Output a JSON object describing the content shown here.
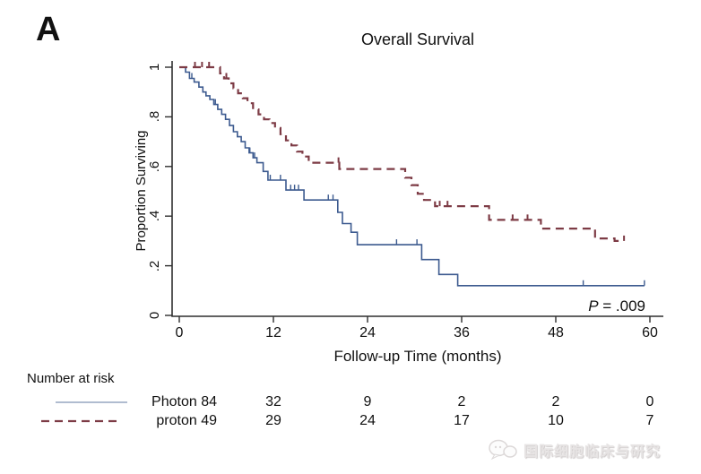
{
  "panel_label": "A",
  "watermark": {
    "logo": "speech-bubble-logo",
    "text": "国际细胞临床与研究"
  },
  "chart_data": {
    "type": "line",
    "subtype": "kaplan-meier-step",
    "title": "Overall Survival",
    "xlabel": "Follow-up Time (months)",
    "ylabel": "Proportion Surviving",
    "xlim": [
      0,
      60
    ],
    "ylim": [
      0,
      1
    ],
    "xticks": [
      0,
      12,
      24,
      36,
      48,
      60
    ],
    "yticks": [
      0,
      0.2,
      0.4,
      0.6,
      0.8,
      1
    ],
    "ytick_labels": [
      "0",
      ".2",
      ".4",
      ".6",
      ".8",
      "1"
    ],
    "grid": false,
    "annotation": {
      "p_label": "P",
      "p_value": " = .009"
    },
    "axis_color": "#2e2e2e",
    "series": [
      {
        "name": "Photon",
        "style": "solid",
        "color": "#3c5a8f",
        "legend_color": "#96a6c0",
        "steps": [
          [
            0,
            1.0
          ],
          [
            0.8,
            0.98
          ],
          [
            1.3,
            0.955
          ],
          [
            1.9,
            0.94
          ],
          [
            2.5,
            0.92
          ],
          [
            3.0,
            0.9
          ],
          [
            3.4,
            0.885
          ],
          [
            3.9,
            0.87
          ],
          [
            4.4,
            0.85
          ],
          [
            4.9,
            0.83
          ],
          [
            5.4,
            0.81
          ],
          [
            5.9,
            0.79
          ],
          [
            6.4,
            0.765
          ],
          [
            6.9,
            0.74
          ],
          [
            7.4,
            0.72
          ],
          [
            7.9,
            0.7
          ],
          [
            8.4,
            0.675
          ],
          [
            8.9,
            0.655
          ],
          [
            9.4,
            0.635
          ],
          [
            9.9,
            0.615
          ],
          [
            10.7,
            0.58
          ],
          [
            11.3,
            0.545
          ],
          [
            13.6,
            0.505
          ],
          [
            15.9,
            0.465
          ],
          [
            20.2,
            0.415
          ],
          [
            20.8,
            0.37
          ],
          [
            21.9,
            0.335
          ],
          [
            22.7,
            0.285
          ],
          [
            30.9,
            0.225
          ],
          [
            33.1,
            0.165
          ],
          [
            35.5,
            0.12
          ],
          [
            59.3,
            0.12
          ]
        ],
        "censors": [
          [
            1.6,
            0.955
          ],
          [
            4.6,
            0.85
          ],
          [
            9.0,
            0.655
          ],
          [
            9.6,
            0.635
          ],
          [
            11.6,
            0.545
          ],
          [
            12.9,
            0.545
          ],
          [
            14.2,
            0.505
          ],
          [
            14.7,
            0.505
          ],
          [
            15.2,
            0.505
          ],
          [
            19.0,
            0.465
          ],
          [
            19.6,
            0.465
          ],
          [
            27.7,
            0.285
          ],
          [
            30.3,
            0.285
          ],
          [
            51.5,
            0.12
          ],
          [
            59.3,
            0.12
          ]
        ]
      },
      {
        "name": "proton",
        "style": "dashed",
        "color": "#7d3b45",
        "legend_color": "#7d3b45",
        "steps": [
          [
            0,
            1.0
          ],
          [
            5.2,
            0.975
          ],
          [
            5.7,
            0.955
          ],
          [
            6.3,
            0.935
          ],
          [
            6.9,
            0.915
          ],
          [
            7.5,
            0.895
          ],
          [
            8.1,
            0.875
          ],
          [
            8.7,
            0.855
          ],
          [
            9.4,
            0.83
          ],
          [
            10.1,
            0.81
          ],
          [
            10.8,
            0.79
          ],
          [
            11.5,
            0.775
          ],
          [
            12.2,
            0.755
          ],
          [
            12.9,
            0.73
          ],
          [
            13.6,
            0.705
          ],
          [
            14.3,
            0.685
          ],
          [
            15.0,
            0.66
          ],
          [
            15.7,
            0.64
          ],
          [
            16.5,
            0.615
          ],
          [
            20.4,
            0.59
          ],
          [
            28.8,
            0.555
          ],
          [
            29.6,
            0.525
          ],
          [
            30.4,
            0.49
          ],
          [
            31.2,
            0.465
          ],
          [
            32.6,
            0.44
          ],
          [
            39.5,
            0.385
          ],
          [
            46.1,
            0.35
          ],
          [
            53.0,
            0.31
          ],
          [
            55.5,
            0.3
          ],
          [
            56.7,
            0.3
          ]
        ],
        "censors": [
          [
            2.0,
            1.0
          ],
          [
            2.9,
            1.0
          ],
          [
            3.8,
            1.0
          ],
          [
            6.0,
            0.955
          ],
          [
            20.3,
            0.615
          ],
          [
            33.2,
            0.44
          ],
          [
            34.2,
            0.44
          ],
          [
            42.5,
            0.385
          ],
          [
            44.4,
            0.385
          ],
          [
            56.7,
            0.3
          ]
        ]
      }
    ],
    "number_at_risk": {
      "heading": "Number at risk",
      "times": [
        0,
        12,
        24,
        36,
        48,
        60
      ],
      "rows": [
        {
          "label": "Photon",
          "counts": [
            84,
            32,
            9,
            2,
            2,
            0
          ]
        },
        {
          "label": "proton",
          "counts": [
            49,
            29,
            24,
            17,
            10,
            7
          ]
        }
      ]
    }
  }
}
